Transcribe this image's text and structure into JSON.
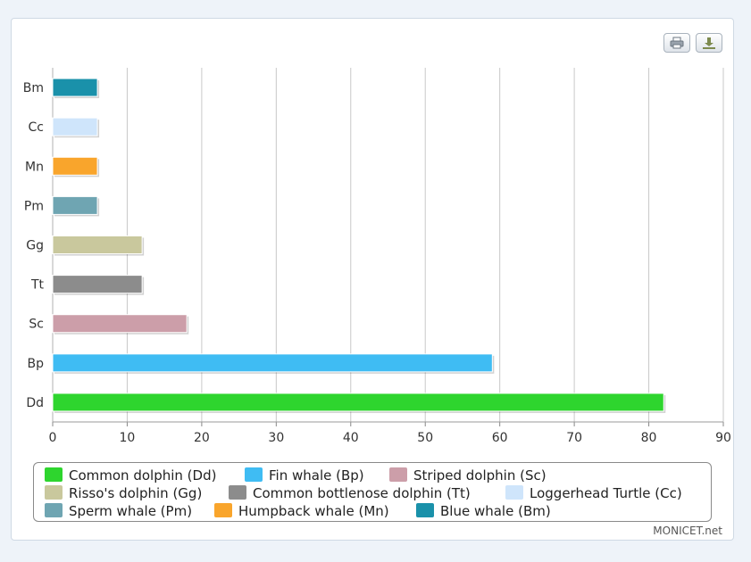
{
  "toolbar": {
    "print_icon": "printer-icon",
    "download_icon": "download-icon"
  },
  "credit": "MONICET.net",
  "chart_data": {
    "type": "bar",
    "orientation": "horizontal",
    "categories": [
      "Bm",
      "Cc",
      "Mn",
      "Pm",
      "Gg",
      "Tt",
      "Sc",
      "Bp",
      "Dd"
    ],
    "values": [
      6,
      6,
      6,
      6,
      12,
      12,
      18,
      59,
      82
    ],
    "colors": [
      "#1a91aa",
      "#cfe5fb",
      "#f9a52c",
      "#6fa5b2",
      "#c9c89d",
      "#8c8c8c",
      "#cc9ea9",
      "#3fbcf3",
      "#2ed52e"
    ],
    "xlim": [
      0,
      90
    ],
    "xticks": [
      0,
      10,
      20,
      30,
      40,
      50,
      60,
      70,
      80,
      90
    ],
    "grid": true,
    "legend_position": "bottom",
    "legend": [
      {
        "label": "Common dolphin (Dd)",
        "color": "#2ed52e"
      },
      {
        "label": "Fin whale (Bp)",
        "color": "#3fbcf3"
      },
      {
        "label": "Striped dolphin (Sc)",
        "color": "#cc9ea9"
      },
      {
        "label": "Risso's dolphin (Gg)",
        "color": "#c9c89d"
      },
      {
        "label": "Common bottlenose dolphin (Tt)",
        "color": "#8c8c8c"
      },
      {
        "label": "Loggerhead Turtle (Cc)",
        "color": "#cfe5fb"
      },
      {
        "label": "Sperm whale (Pm)",
        "color": "#6fa5b2"
      },
      {
        "label": "Humpback whale (Mn)",
        "color": "#f9a52c"
      },
      {
        "label": "Blue whale (Bm)",
        "color": "#1a91aa"
      }
    ]
  }
}
